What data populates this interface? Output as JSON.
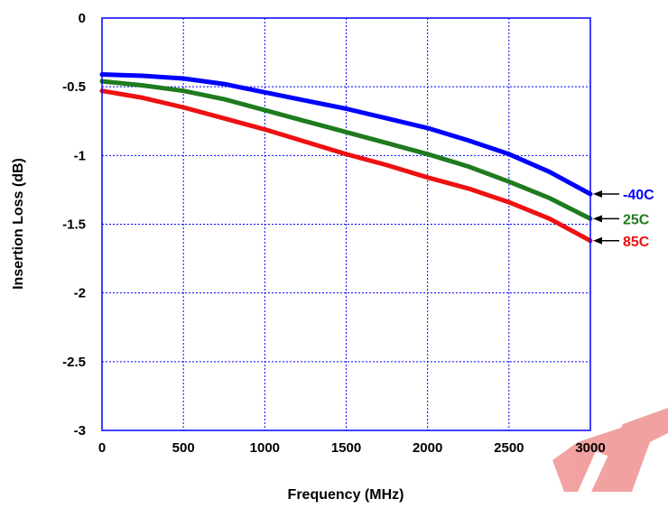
{
  "chart_data": {
    "type": "line",
    "xlabel": "Frequency (MHz)",
    "ylabel": "Insertion Loss (dB)",
    "xlim": [
      0,
      3000
    ],
    "ylim": [
      -3,
      0
    ],
    "x_ticks": [
      0,
      500,
      1000,
      1500,
      2000,
      2500,
      3000
    ],
    "y_ticks": [
      0,
      -0.5,
      -1,
      -1.5,
      -2,
      -2.5,
      -3
    ],
    "x_tick_labels": [
      "0",
      "500",
      "1000",
      "1500",
      "2000",
      "2500",
      "3000"
    ],
    "y_tick_labels": [
      "0",
      "-0.5",
      "-1",
      "-1.5",
      "-2",
      "-2.5",
      "-3"
    ],
    "grid": true,
    "series": [
      {
        "name": "-40C",
        "color": "#0000ff",
        "x": [
          0,
          250,
          500,
          750,
          1000,
          1250,
          1500,
          1750,
          2000,
          2250,
          2500,
          2750,
          3000
        ],
        "y": [
          -0.41,
          -0.42,
          -0.44,
          -0.48,
          -0.54,
          -0.6,
          -0.66,
          -0.73,
          -0.8,
          -0.89,
          -0.99,
          -1.12,
          -1.28
        ]
      },
      {
        "name": "25C",
        "color": "#1e7b1e",
        "x": [
          0,
          250,
          500,
          750,
          1000,
          1250,
          1500,
          1750,
          2000,
          2250,
          2500,
          2750,
          3000
        ],
        "y": [
          -0.46,
          -0.49,
          -0.53,
          -0.59,
          -0.67,
          -0.75,
          -0.83,
          -0.91,
          -0.99,
          -1.08,
          -1.19,
          -1.31,
          -1.46
        ]
      },
      {
        "name": "85C",
        "color": "#ee1111",
        "x": [
          0,
          250,
          500,
          750,
          1000,
          1250,
          1500,
          1750,
          2000,
          2250,
          2500,
          2750,
          3000
        ],
        "y": [
          -0.53,
          -0.58,
          -0.65,
          -0.73,
          -0.81,
          -0.9,
          -0.99,
          -1.07,
          -1.16,
          -1.24,
          -1.34,
          -1.46,
          -1.62
        ]
      }
    ]
  }
}
